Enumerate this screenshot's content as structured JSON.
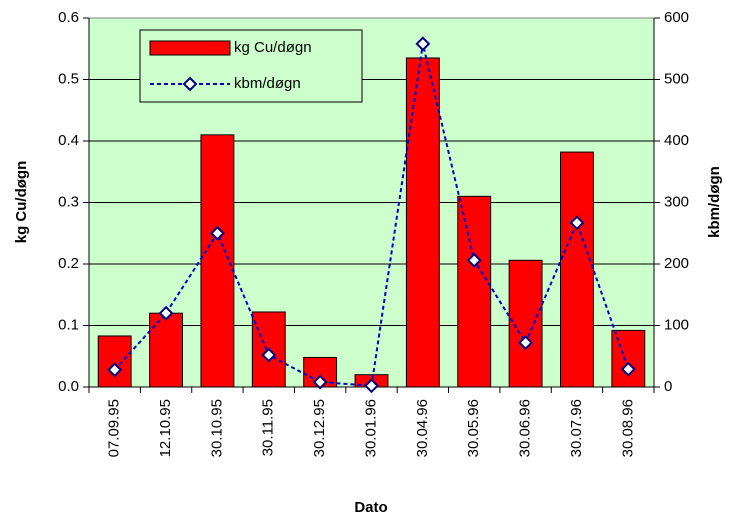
{
  "chart_data": {
    "type": "bar_line",
    "categories": [
      "07.09.95",
      "12.10.95",
      "30.10.95",
      "30.11.95",
      "30.12.95",
      "30.01.96",
      "30.04.96",
      "30.05.96",
      "30.06.96",
      "30.07.96",
      "30.08.96"
    ],
    "series": [
      {
        "name": "kg Cu/døgn",
        "color": "#ff0000",
        "type": "bar",
        "values": [
          0.083,
          0.12,
          0.41,
          0.122,
          0.048,
          0.02,
          0.535,
          0.31,
          0.206,
          0.382,
          0.092
        ]
      },
      {
        "name": "kbm/døgn",
        "color": "#0000cc",
        "type": "line",
        "axis": "y2",
        "values": [
          28,
          120,
          250,
          52,
          8,
          2,
          558,
          206,
          72,
          267,
          29
        ]
      }
    ],
    "x_label": "Dato",
    "y_label": "kg Cu/døgn",
    "y2_label": "kbm/døgn",
    "ylim": [
      0,
      0.6
    ],
    "yticks": [
      {
        "value": 0,
        "label": "0.0"
      },
      0.1,
      0.2,
      0.3,
      0.4,
      0.5,
      0.6
    ],
    "y2lim": [
      0,
      600
    ],
    "y2ticks": [
      0,
      100,
      200,
      300,
      400,
      500,
      600
    ],
    "grid": true,
    "legend": "upper left",
    "plot_background": "#ccffcc"
  }
}
